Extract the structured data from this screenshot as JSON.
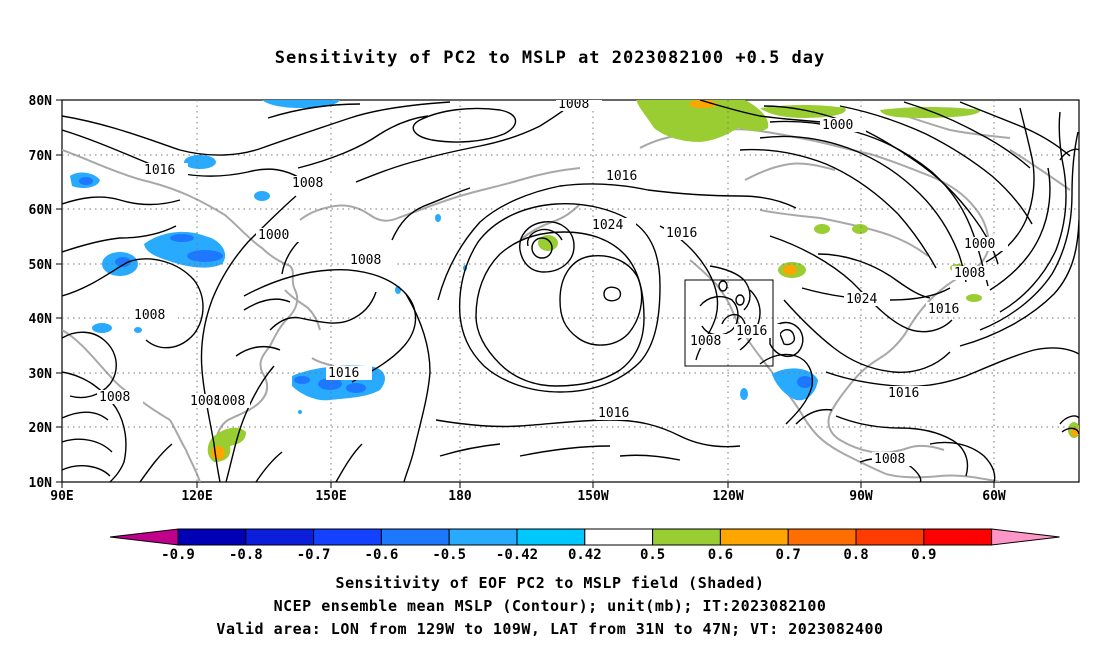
{
  "title": "Sensitivity of PC2 to MSLP at 2023082100 +0.5 day",
  "lat_labels": [
    "80N",
    "70N",
    "60N",
    "50N",
    "40N",
    "30N",
    "20N",
    "10N"
  ],
  "lon_labels": [
    "90E",
    "120E",
    "150E",
    "180",
    "150W",
    "120W",
    "90W",
    "60W"
  ],
  "contour_labels": [
    "1008",
    "1000",
    "1016",
    "1008",
    "1000",
    "1008",
    "1008",
    "1016",
    "1024",
    "1016",
    "1000",
    "1008",
    "1008",
    "1024",
    "1016",
    "1016",
    "1008",
    "1016",
    "1008",
    "1016",
    "1008",
    "1008",
    "1008",
    "1016"
  ],
  "colorbar": {
    "tick_labels": [
      "-0.9",
      "-0.8",
      "-0.7",
      "-0.6",
      "-0.5",
      "-0.42",
      "0.42",
      "0.5",
      "0.6",
      "0.7",
      "0.8",
      "0.9"
    ],
    "colors": [
      "#c0008a",
      "#0000b4",
      "#0a1edc",
      "#1440ff",
      "#1e78ff",
      "#28aaff",
      "#00c8ff",
      "#ffffff",
      "#9acd32",
      "#ffa500",
      "#ff6e00",
      "#ff3c00",
      "#ff0000",
      "#ff96c8"
    ]
  },
  "captions": {
    "line1": "Sensitivity of EOF PC2 to MSLP field (Shaded)",
    "line2": "NCEP ensemble mean MSLP (Contour); unit(mb); IT:2023082100",
    "line3": "Valid area: LON from 129W to 109W, LAT from 31N to 47N; VT: 2023082400"
  }
}
